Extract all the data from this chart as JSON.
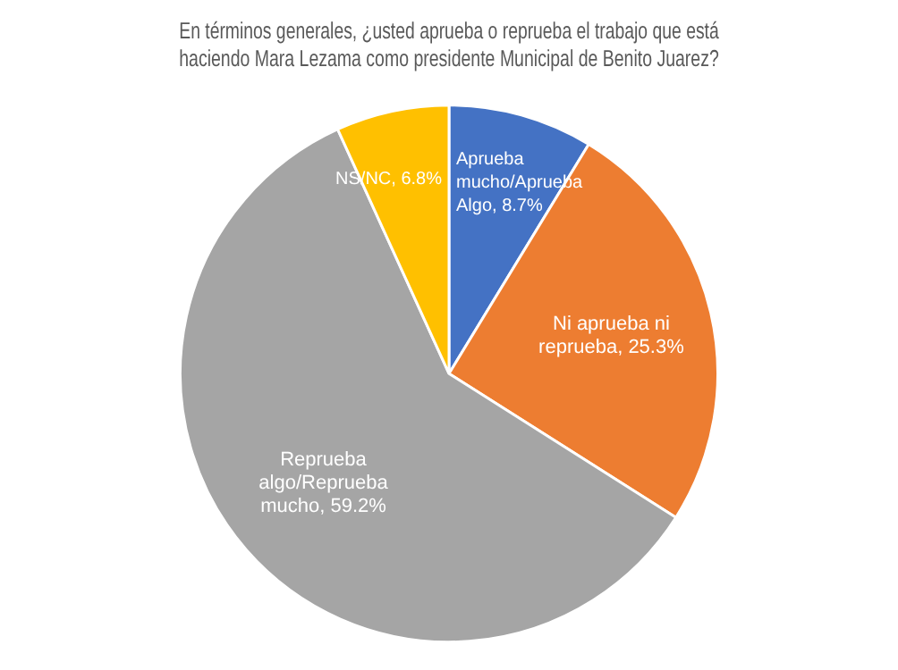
{
  "chart_data": {
    "type": "pie",
    "title": "En términos generales, ¿usted aprueba o reprueba el trabajo que está haciendo Mara Lezama como presidente Municipal de Benito Juarez?",
    "categories": [
      "Aprueba mucho/Aprueba Algo",
      "Ni aprueba ni reprueba",
      "Reprueba algo/Reprueba mucho",
      "NS/NC"
    ],
    "values": [
      8.7,
      25.3,
      59.2,
      6.8
    ],
    "value_labels": [
      "8.7%",
      "25.3%",
      "59.2%",
      "6.8%"
    ],
    "colors": [
      "#4472c4",
      "#ed7d31",
      "#a5a5a5",
      "#ffc000"
    ],
    "legend": false
  }
}
